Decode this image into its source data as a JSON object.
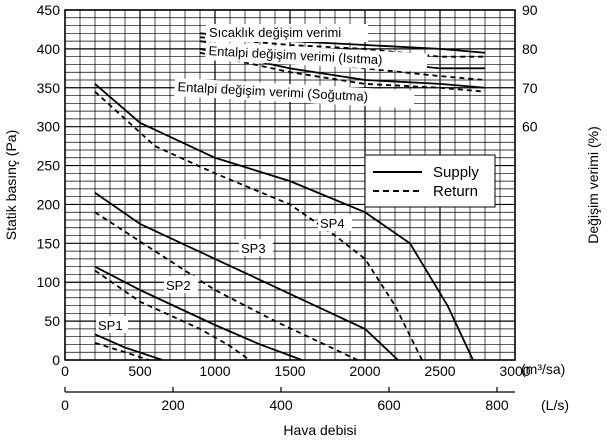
{
  "chart_data": {
    "type": "line",
    "ylabel": "Statik basınç (Pa)",
    "y2label": "Değişim verimi (%)",
    "xlabel": "Hava debisi",
    "x_unit_top": "(m³/sa)",
    "x_unit_bottom": "(L/s)",
    "xlim": [
      0,
      3000
    ],
    "ylim": [
      0,
      450
    ],
    "y2lim": [
      0,
      90
    ],
    "x_ticks": [
      "0",
      "500",
      "1000",
      "1500",
      "2000",
      "2500",
      "3000"
    ],
    "x2_ticks": [
      "0",
      "200",
      "400",
      "600",
      "800"
    ],
    "y_ticks": [
      "0",
      "50",
      "100",
      "150",
      "200",
      "250",
      "300",
      "350",
      "400",
      "450"
    ],
    "y2_ticks": [
      "60",
      "70",
      "80",
      "90"
    ],
    "grid": true,
    "legend": {
      "position": "right",
      "entries": [
        {
          "name": "Supply",
          "style": "solid"
        },
        {
          "name": "Return",
          "style": "dashed"
        }
      ]
    },
    "efficiency_labels": [
      "Sıcaklık değişim verimi",
      "Entalpi değişim verimi (Isıtma)",
      "Entalpi değişim verimi (Soğutma)"
    ],
    "fan_labels": [
      "SP1",
      "SP2",
      "SP3",
      "SP4"
    ],
    "series": [
      {
        "label": "SP1",
        "style": "solid",
        "points": [
          [
            200,
            33
          ],
          [
            400,
            16
          ],
          [
            650,
            0
          ]
        ]
      },
      {
        "label": "SP1",
        "style": "dashed",
        "points": [
          [
            200,
            22
          ],
          [
            400,
            10
          ],
          [
            560,
            0
          ]
        ]
      },
      {
        "label": "SP2",
        "style": "solid",
        "points": [
          [
            200,
            120
          ],
          [
            500,
            90
          ],
          [
            1000,
            45
          ],
          [
            1300,
            20
          ],
          [
            1580,
            0
          ]
        ]
      },
      {
        "label": "SP2",
        "style": "dashed",
        "points": [
          [
            200,
            115
          ],
          [
            500,
            75
          ],
          [
            900,
            40
          ],
          [
            1100,
            18
          ],
          [
            1230,
            0
          ]
        ]
      },
      {
        "label": "SP3",
        "style": "solid",
        "points": [
          [
            200,
            215
          ],
          [
            500,
            175
          ],
          [
            1000,
            130
          ],
          [
            1500,
            85
          ],
          [
            2000,
            40
          ],
          [
            2220,
            0
          ]
        ]
      },
      {
        "label": "SP3",
        "style": "dashed",
        "points": [
          [
            200,
            190
          ],
          [
            600,
            140
          ],
          [
            1000,
            90
          ],
          [
            1400,
            50
          ],
          [
            1950,
            0
          ]
        ]
      },
      {
        "label": "SP4",
        "style": "solid",
        "points": [
          [
            200,
            355
          ],
          [
            500,
            305
          ],
          [
            1000,
            260
          ],
          [
            1500,
            230
          ],
          [
            2000,
            190
          ],
          [
            2300,
            150
          ],
          [
            2550,
            70
          ],
          [
            2720,
            0
          ]
        ]
      },
      {
        "label": "SP4",
        "style": "dashed",
        "points": [
          [
            200,
            345
          ],
          [
            600,
            275
          ],
          [
            1000,
            240
          ],
          [
            1500,
            200
          ],
          [
            1800,
            160
          ],
          [
            2000,
            130
          ],
          [
            2200,
            70
          ],
          [
            2380,
            0
          ]
        ]
      },
      {
        "label": "Sıcaklık değişim verimi",
        "style": "solid",
        "axis": "y2",
        "points": [
          [
            900,
            84
          ],
          [
            1500,
            82
          ],
          [
            2000,
            81
          ],
          [
            2500,
            80
          ],
          [
            2800,
            79
          ]
        ]
      },
      {
        "label": "Sıcaklık değişim verimi",
        "style": "dashed",
        "axis": "y2",
        "points": [
          [
            900,
            83
          ],
          [
            1500,
            81
          ],
          [
            2000,
            80
          ],
          [
            2500,
            78
          ],
          [
            2800,
            78
          ]
        ]
      },
      {
        "label": "Entalpi değişim verimi (Isıtma)",
        "style": "solid",
        "axis": "y2",
        "points": [
          [
            900,
            82
          ],
          [
            1500,
            78
          ],
          [
            2000,
            77
          ],
          [
            2500,
            75
          ],
          [
            2800,
            75
          ]
        ]
      },
      {
        "label": "Entalpi değişim verimi (Isıtma)",
        "style": "dashed",
        "axis": "y2",
        "points": [
          [
            900,
            80
          ],
          [
            1500,
            77
          ],
          [
            2000,
            75
          ],
          [
            2500,
            73
          ],
          [
            2800,
            72
          ]
        ]
      },
      {
        "label": "Entalpi değişim verimi (Soğutma)",
        "style": "solid",
        "axis": "y2",
        "points": [
          [
            900,
            80
          ],
          [
            1500,
            75
          ],
          [
            2000,
            72
          ],
          [
            2500,
            71
          ],
          [
            2800,
            70
          ]
        ]
      },
      {
        "label": "Entalpi değişim verimi (Soğutma)",
        "style": "dashed",
        "axis": "y2",
        "points": [
          [
            900,
            79
          ],
          [
            1500,
            74
          ],
          [
            2000,
            71
          ],
          [
            2500,
            70
          ],
          [
            2800,
            69
          ]
        ]
      }
    ]
  }
}
